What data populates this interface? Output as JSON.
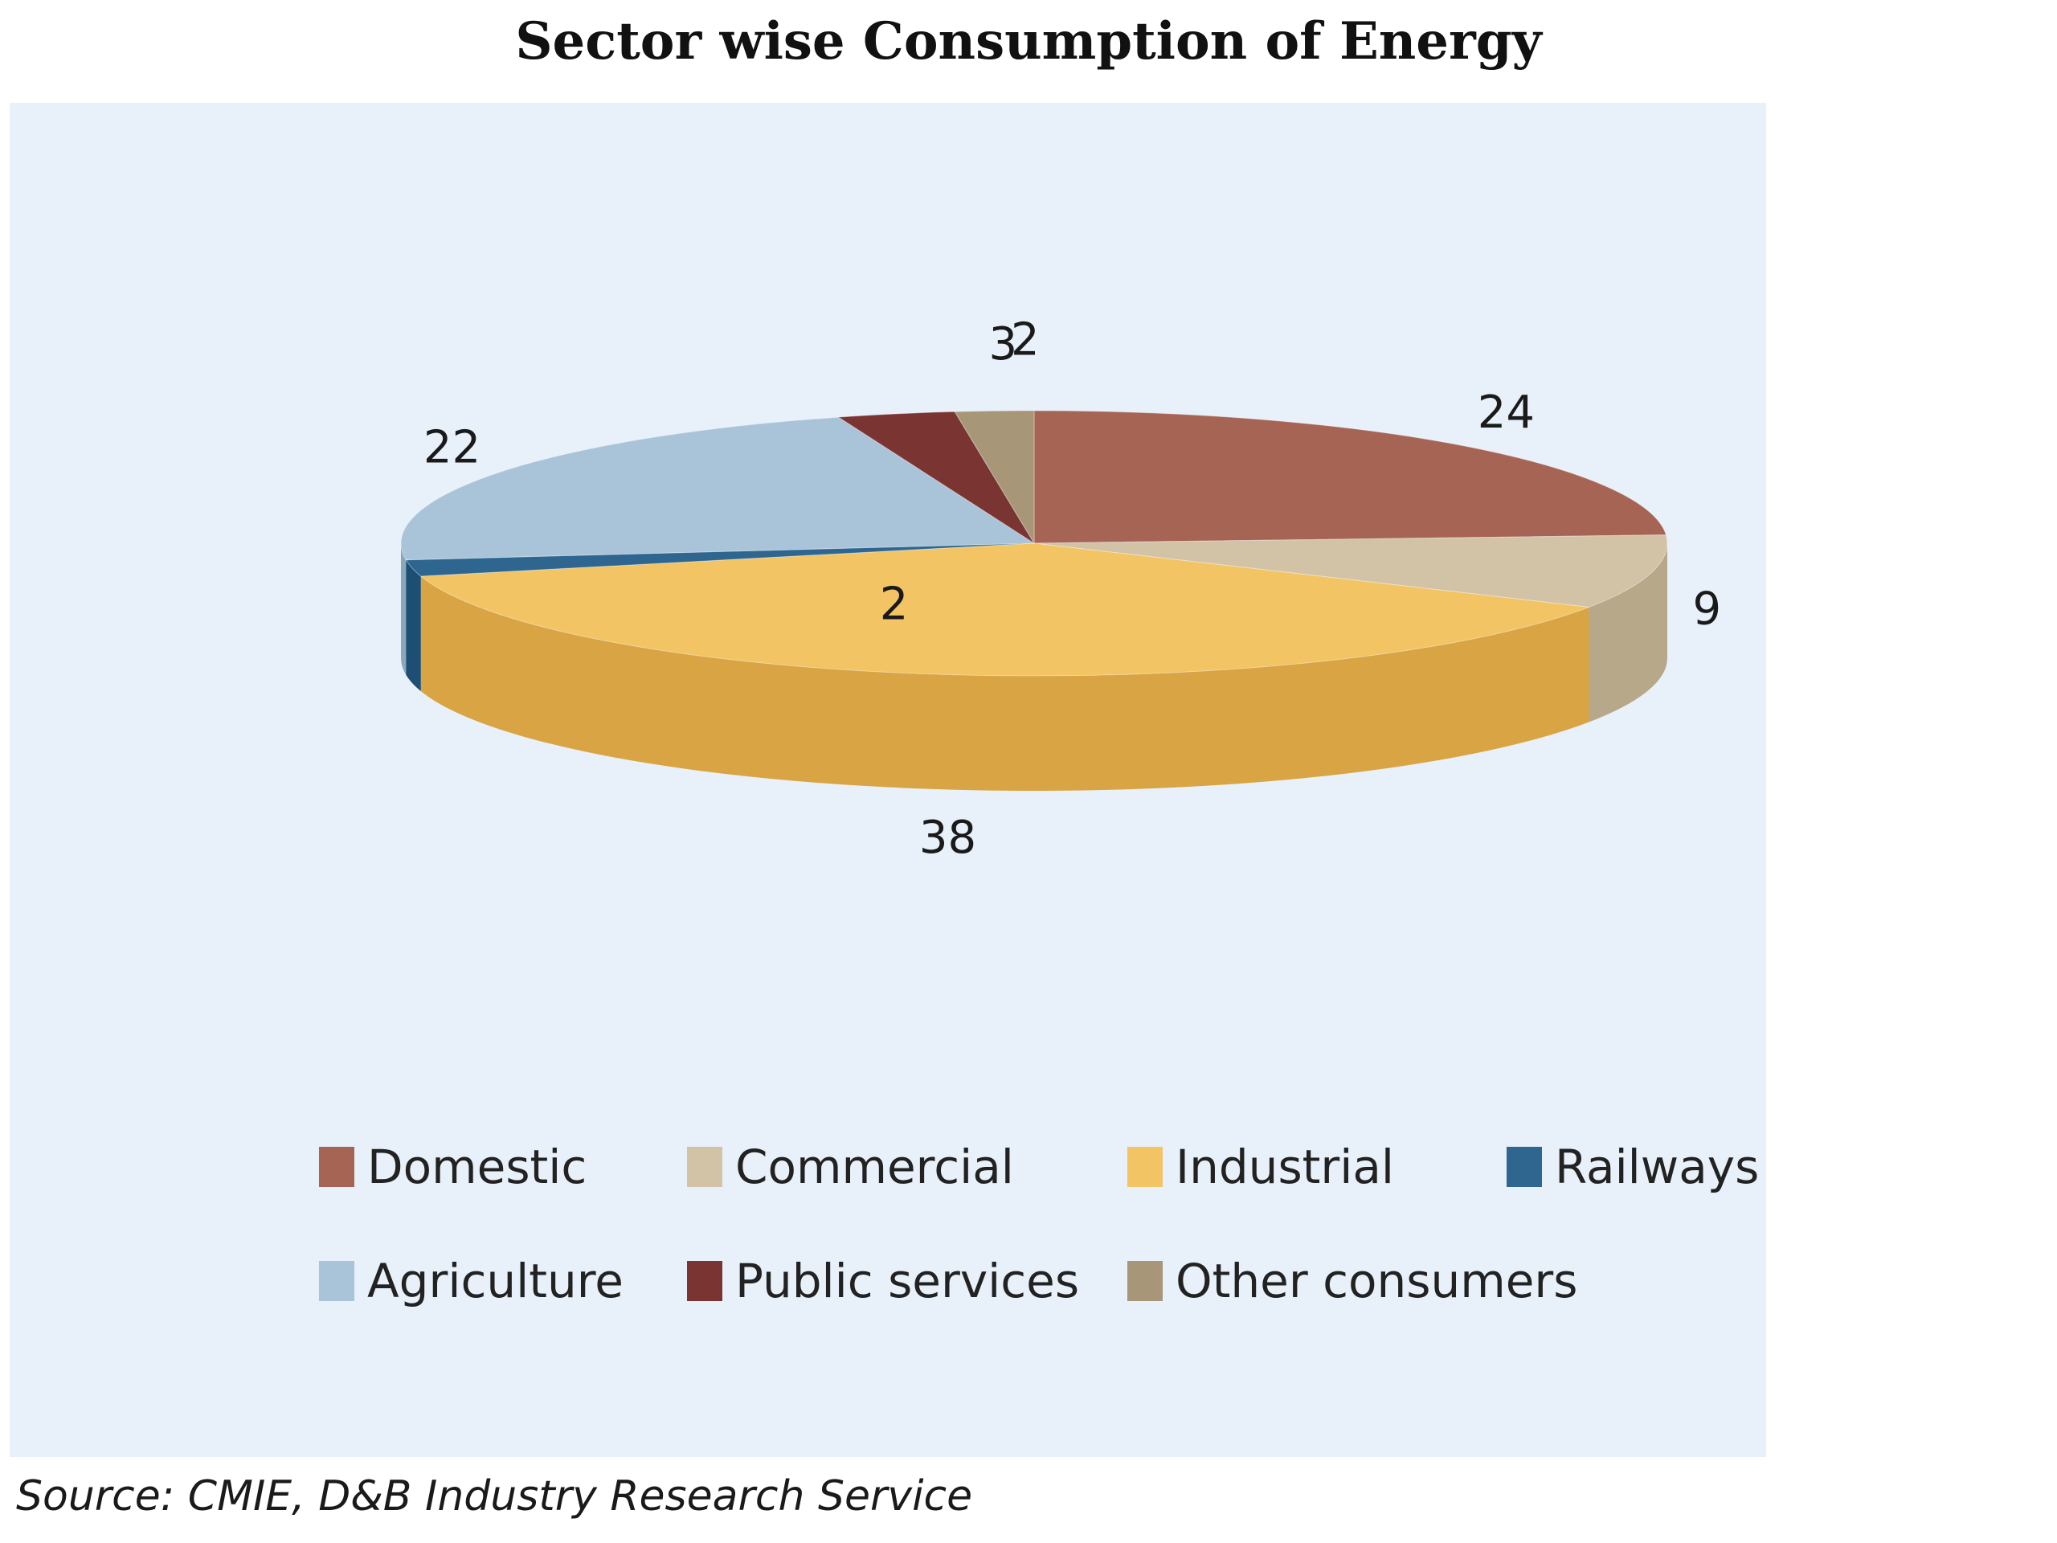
{
  "chart_data": {
    "type": "pie",
    "title": "Sector wise Consumption of Energy",
    "source": "Source: CMIE, D&B Industry Research Service",
    "legend_position": "bottom",
    "slices": [
      {
        "name": "Domestic",
        "value": 24,
        "label": "24",
        "color": "#a66455",
        "side": "#8a4f43"
      },
      {
        "name": "Commercial",
        "value": 9,
        "label": "9",
        "color": "#d2c3a6",
        "side": "#b8a88a"
      },
      {
        "name": "Industrial",
        "value": 38,
        "label": "38",
        "color": "#f2c464",
        "side": "#d9a443"
      },
      {
        "name": "Railways",
        "value": 2,
        "label": "2",
        "color": "#2e6690",
        "side": "#1d4e73"
      },
      {
        "name": "Agriculture",
        "value": 22,
        "label": "22",
        "color": "#a9c4d8",
        "side": "#8aa7bd"
      },
      {
        "name": "Public services",
        "value": 3,
        "label": "3",
        "color": "#7a3532",
        "side": "#5e2725"
      },
      {
        "name": "Other consumers",
        "value": 2,
        "label": "2",
        "color": "#a89679",
        "side": "#8d7c61"
      }
    ]
  }
}
